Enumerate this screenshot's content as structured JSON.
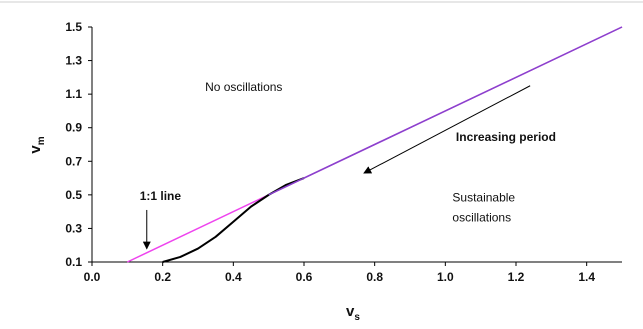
{
  "chart_data": {
    "type": "line",
    "xlabel_main": "v",
    "xlabel_sub": "s",
    "ylabel_main": "v",
    "ylabel_sub": "m",
    "xlim": [
      0.0,
      1.5
    ],
    "ylim": [
      0.1,
      1.5
    ],
    "x_ticks": [
      "0.0",
      "0.2",
      "0.4",
      "0.6",
      "0.8",
      "1.0",
      "1.2",
      "1.4"
    ],
    "y_ticks": [
      "1.5",
      "1.3",
      "1.1",
      "0.9",
      "0.7",
      "0.5",
      "0.3",
      "0.1"
    ],
    "x_tick_values": [
      0.0,
      0.2,
      0.4,
      0.6,
      0.8,
      1.0,
      1.2,
      1.4
    ],
    "y_tick_values": [
      1.5,
      1.3,
      1.1,
      0.9,
      0.7,
      0.5,
      0.3,
      0.1
    ],
    "grid": false,
    "series": [
      {
        "color": "#ee44ee",
        "x": [
          0.1,
          1.5
        ],
        "y": [
          0.1,
          1.5
        ]
      },
      {
        "color": "#000000",
        "x": [
          0.2,
          0.25,
          0.3,
          0.35,
          0.4,
          0.45,
          0.5,
          0.55,
          0.6
        ],
        "y": [
          0.1,
          0.13,
          0.18,
          0.25,
          0.34,
          0.43,
          0.5,
          0.56,
          0.6
        ]
      },
      {
        "color": "#8844cc",
        "x": [
          0.5,
          1.5
        ],
        "y": [
          0.5,
          1.5
        ]
      }
    ],
    "annotations": [
      {
        "text": "No oscillations",
        "x": 0.32,
        "y": 1.12,
        "bold": false
      },
      {
        "text": "Increasing period",
        "x": 1.03,
        "y": 0.82,
        "bold": true
      },
      {
        "text": "Sustainable",
        "x": 1.02,
        "y": 0.46,
        "bold": false
      },
      {
        "text": "oscillations",
        "x": 1.02,
        "y": 0.34,
        "bold": false
      },
      {
        "text": "1:1 line",
        "x": 0.135,
        "y": 0.47,
        "bold": true
      }
    ],
    "arrows": [
      {
        "name": "increasing-period-arrow",
        "x1": 1.24,
        "y1": 1.15,
        "x2": 0.77,
        "y2": 0.63
      },
      {
        "name": "one-to-one-line-arrow",
        "x1": 0.155,
        "y1": 0.41,
        "x2": 0.155,
        "y2": 0.18
      }
    ]
  }
}
